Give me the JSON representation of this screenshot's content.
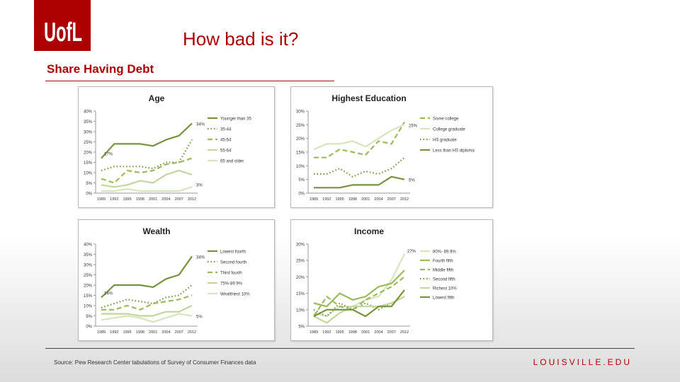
{
  "header": {
    "logo_text": "UofL",
    "title": "How bad is it?",
    "subtitle": "Share Having Debt"
  },
  "footer": {
    "source": "Source: Pew Research Center tabulations of Survey of Consumer Finances data",
    "site": "LOUISVILLE.EDU"
  },
  "colors": {
    "brand": "#ad0000",
    "dark_green": "#77933c",
    "mid_green": "#9bbb59",
    "light_green": "#c3d69b",
    "pale_green": "#d7e4bd"
  },
  "chart_data": [
    {
      "type": "line",
      "title": "Age",
      "categories": [
        "1989",
        "1992",
        "1995",
        "1998",
        "2001",
        "2004",
        "2007",
        "2012"
      ],
      "ylim": [
        0,
        40
      ],
      "yticks": [
        "0%",
        "5%",
        "10%",
        "15%",
        "20%",
        "25%",
        "30%",
        "35%",
        "40%"
      ],
      "grid": false,
      "legend": "right",
      "series": [
        {
          "name": "Younger than 35",
          "values": [
            17,
            24,
            24,
            24,
            23,
            26,
            28,
            34
          ],
          "style": "solid",
          "color": "#77933c"
        },
        {
          "name": "35-44",
          "values": [
            11,
            13,
            13,
            13,
            12,
            15,
            15,
            26
          ],
          "style": "dotted",
          "color": "#77933c"
        },
        {
          "name": "45-54",
          "values": [
            7,
            5,
            11,
            10,
            11,
            14,
            15,
            17
          ],
          "style": "dashed",
          "color": "#9bbb59"
        },
        {
          "name": "55-64",
          "values": [
            4,
            3,
            4,
            6,
            5,
            9,
            11,
            9
          ],
          "style": "solid",
          "color": "#c3d69b"
        },
        {
          "name": "65 and older",
          "values": [
            1,
            1,
            2,
            1,
            1,
            1,
            1,
            3
          ],
          "style": "solid",
          "color": "#d7e4bd"
        }
      ],
      "annotations": [
        "17%",
        "34%",
        "3%"
      ]
    },
    {
      "type": "line",
      "title": "Highest Education",
      "categories": [
        "1989",
        "1992",
        "1995",
        "1998",
        "2001",
        "2004",
        "2007",
        "2012"
      ],
      "ylim": [
        0,
        30
      ],
      "yticks": [
        "0%",
        "5%",
        "10%",
        "15%",
        "20%",
        "25%",
        "30%"
      ],
      "grid": false,
      "legend": "right",
      "series": [
        {
          "name": "Some college",
          "values": [
            13,
            13,
            16,
            15,
            14,
            19,
            18,
            26
          ],
          "style": "dashed",
          "color": "#9bbb59"
        },
        {
          "name": "College graduate",
          "values": [
            16,
            18,
            18,
            19,
            17,
            20,
            23,
            25
          ],
          "style": "solid",
          "color": "#d7e4bd"
        },
        {
          "name": "HS graduate",
          "values": [
            7,
            7,
            9,
            6,
            8,
            7,
            9,
            13
          ],
          "style": "dotted",
          "color": "#77933c"
        },
        {
          "name": "Less than HS diploma",
          "values": [
            2,
            2,
            2,
            3,
            3,
            3,
            6,
            5
          ],
          "style": "solid",
          "color": "#77933c"
        }
      ],
      "annotations": [
        "25%",
        "5%"
      ]
    },
    {
      "type": "line",
      "title": "Wealth",
      "categories": [
        "1989",
        "1992",
        "1995",
        "1998",
        "2001",
        "2004",
        "2007",
        "2012"
      ],
      "ylim": [
        0,
        40
      ],
      "yticks": [
        "0%",
        "5%",
        "10%",
        "15%",
        "20%",
        "25%",
        "30%",
        "35%",
        "40%"
      ],
      "grid": false,
      "legend": "right",
      "series": [
        {
          "name": "Lowest fourth",
          "values": [
            14,
            20,
            20,
            20,
            19,
            23,
            25,
            34
          ],
          "style": "solid",
          "color": "#77933c"
        },
        {
          "name": "Second fourth",
          "values": [
            9,
            11,
            13,
            12,
            11,
            14,
            15,
            20
          ],
          "style": "dotted",
          "color": "#77933c"
        },
        {
          "name": "Third fourth",
          "values": [
            8,
            8,
            10,
            8,
            11,
            12,
            13,
            15
          ],
          "style": "dashed",
          "color": "#9bbb59"
        },
        {
          "name": "75%-89.9%",
          "values": [
            6,
            6,
            6,
            5,
            5,
            7,
            7,
            10
          ],
          "style": "solid",
          "color": "#c3d69b"
        },
        {
          "name": "Wealthiest 10%",
          "values": [
            3,
            4,
            5,
            4,
            2,
            4,
            6,
            5
          ],
          "style": "solid",
          "color": "#d7e4bd"
        }
      ],
      "annotations": [
        "14%",
        "34%",
        "5%"
      ]
    },
    {
      "type": "line",
      "title": "Income",
      "categories": [
        "1989",
        "1992",
        "1995",
        "1998",
        "2001",
        "2004",
        "2007",
        "2012"
      ],
      "ylim": [
        5,
        30
      ],
      "yticks": [
        "5%",
        "10%",
        "15%",
        "20%",
        "25%",
        "30%"
      ],
      "grid": false,
      "legend": "right",
      "series": [
        {
          "name": "80%- 89.9%",
          "values": [
            9,
            8,
            11,
            11,
            13,
            14,
            19,
            27
          ],
          "style": "solid",
          "color": "#d7e4bd"
        },
        {
          "name": "Fourth fifth",
          "values": [
            12,
            11,
            15,
            13,
            14,
            17,
            18,
            22
          ],
          "style": "solid",
          "color": "#9bbb59"
        },
        {
          "name": "Middle fifth",
          "values": [
            8,
            14,
            11,
            10,
            13,
            15,
            17,
            20
          ],
          "style": "dashed",
          "color": "#9bbb59"
        },
        {
          "name": "Second fifth",
          "values": [
            10,
            8,
            12,
            10,
            12,
            10,
            12,
            14
          ],
          "style": "dotted",
          "color": "#77933c"
        },
        {
          "name": "Richest 10%",
          "values": [
            8,
            6,
            9,
            11,
            11,
            11,
            12,
            14
          ],
          "style": "solid",
          "color": "#c3d69b"
        },
        {
          "name": "Lowest fifth",
          "values": [
            8,
            10,
            10,
            10,
            8,
            11,
            11,
            16
          ],
          "style": "solid",
          "color": "#77933c"
        }
      ],
      "annotations": [
        "27%"
      ]
    }
  ]
}
